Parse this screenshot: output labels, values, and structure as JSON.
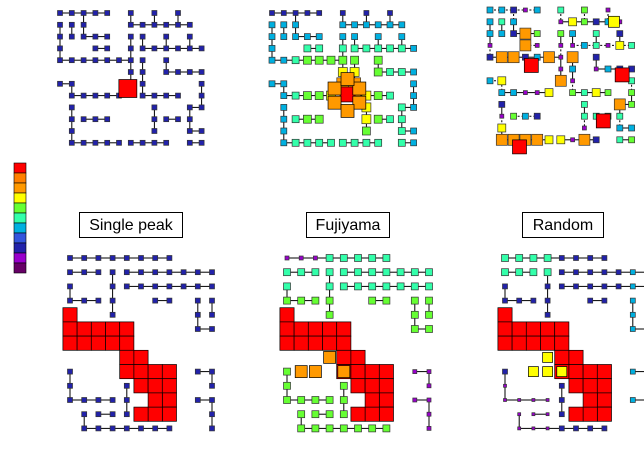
{
  "labels": {
    "single_peak": "Single peak",
    "fujiyama": "Fujiyama",
    "random": "Random"
  },
  "colors": {
    "scale": [
      "#ff0000",
      "#ff7f00",
      "#ff9900",
      "#ffff00",
      "#66ff33",
      "#33ffaa",
      "#00b0e0",
      "#3355dd",
      "#2222aa",
      "#9900cc",
      "#660066"
    ],
    "edge": "#000000",
    "node_border": "#333333"
  },
  "legend": {
    "type": "color-scale",
    "levels": 11
  }
}
